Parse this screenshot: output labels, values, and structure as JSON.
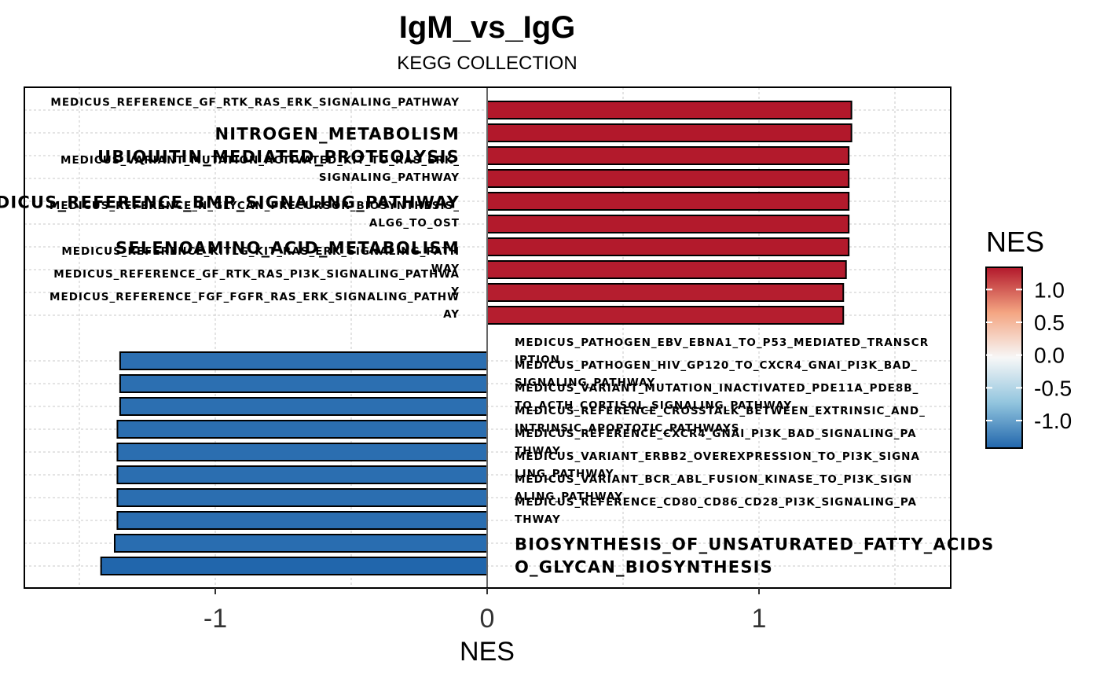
{
  "chart_data": {
    "type": "bar",
    "orientation": "horizontal",
    "title": "IgM_vs_IgG",
    "subtitle": "KEGG COLLECTION",
    "xlabel": "NES",
    "ylabel": "",
    "xlim": [
      -1.7,
      1.7
    ],
    "x_ticks": [
      -1,
      0,
      1
    ],
    "x_tick_labels": [
      "-1",
      "0",
      "1"
    ],
    "grid": true,
    "legend": {
      "title": "NES",
      "position": "right",
      "ticks": [
        "1.0",
        "0.5",
        "0.0",
        "-0.5",
        "-1.0"
      ],
      "tick_values": [
        1.0,
        0.5,
        0.0,
        -0.5,
        -1.0
      ],
      "range": [
        -1.42,
        1.34
      ],
      "colors": {
        "high": "#B2182B",
        "mid": "#F7F7F7",
        "low": "#2166AC"
      }
    },
    "bars": [
      {
        "lines": [
          "MEDICUS_REFERENCE_GF_RTK_RAS_ERK_SIGNALING_PATHWAY"
        ],
        "size": "small",
        "value": 1.34
      },
      {
        "lines": [
          "NITROGEN_METABOLISM"
        ],
        "size": "large",
        "value": 1.34
      },
      {
        "lines": [
          "UBIQUITIN_MEDIATED_PROTEOLYSIS"
        ],
        "size": "large",
        "value": 1.33
      },
      {
        "lines": [
          "MEDICUS_VARIANT_MUTATION_ACTIVATED_KIT_TO_RAS_ERK_",
          "SIGNALING_PATHWAY"
        ],
        "size": "small",
        "value": 1.33
      },
      {
        "lines": [
          "MEDICUS_REFERENCE_BMP_SIGNALING_PATHWAY"
        ],
        "size": "large",
        "value": 1.33
      },
      {
        "lines": [
          "MEDICUS_REFERENCE_N_GLYCAN_PRECURSOR_BIOSYNTHESIS_",
          "ALG6_TO_OST"
        ],
        "size": "small",
        "value": 1.33
      },
      {
        "lines": [
          "SELENOAMINO_ACID_METABOLISM"
        ],
        "size": "large",
        "value": 1.33
      },
      {
        "lines": [
          "MEDICUS_REFERENCE_KITLG_KIT_RAS_ERK_SIGNALING_PATH",
          "WAY"
        ],
        "size": "small",
        "value": 1.32
      },
      {
        "lines": [
          "MEDICUS_REFERENCE_GF_RTK_RAS_PI3K_SIGNALING_PATHWA",
          "Y"
        ],
        "size": "small",
        "value": 1.31
      },
      {
        "lines": [
          "MEDICUS_REFERENCE_FGF_FGFR_RAS_ERK_SIGNALING_PATHW",
          "AY"
        ],
        "size": "small",
        "value": 1.31
      },
      {
        "lines": [
          "MEDICUS_PATHOGEN_EBV_EBNA1_TO_P53_MEDIATED_TRANSCR",
          "IPTION"
        ],
        "size": "small",
        "value": -1.35
      },
      {
        "lines": [
          "MEDICUS_PATHOGEN_HIV_GP120_TO_CXCR4_GNAI_PI3K_BAD_",
          "SIGNALING_PATHWAY"
        ],
        "size": "small",
        "value": -1.35
      },
      {
        "lines": [
          "MEDICUS_VARIANT_MUTATION_INACTIVATED_PDE11A_PDE8B_",
          "TO_ACTH_CORTISOL_SIGNALING_PATHWAY"
        ],
        "size": "small",
        "value": -1.35
      },
      {
        "lines": [
          "MEDICUS_REFERENCE_CROSSTALK_BETWEEN_EXTRINSIC_AND_",
          "INTRINSIC_APOPTOTIC_PATHWAYS"
        ],
        "size": "small",
        "value": -1.36
      },
      {
        "lines": [
          "MEDICUS_REFERENCE_CXCR4_GNAI_PI3K_BAD_SIGNALING_PA",
          "THWAY"
        ],
        "size": "small",
        "value": -1.36
      },
      {
        "lines": [
          "MEDICUS_VARIANT_ERBB2_OVEREXPRESSION_TO_PI3K_SIGNA",
          "LING_PATHWAY"
        ],
        "size": "small",
        "value": -1.36
      },
      {
        "lines": [
          "MEDICUS_VARIANT_BCR_ABL_FUSION_KINASE_TO_PI3K_SIGN",
          "ALING_PATHWAY"
        ],
        "size": "small",
        "value": -1.36
      },
      {
        "lines": [
          "MEDICUS_REFERENCE_CD80_CD86_CD28_PI3K_SIGNALING_PA",
          "THWAY"
        ],
        "size": "small",
        "value": -1.36
      },
      {
        "lines": [
          "BIOSYNTHESIS_OF_UNSATURATED_FATTY_ACIDS"
        ],
        "size": "large",
        "value": -1.37
      },
      {
        "lines": [
          "O_GLYCAN_BIOSYNTHESIS"
        ],
        "size": "large",
        "value": -1.42
      }
    ]
  }
}
